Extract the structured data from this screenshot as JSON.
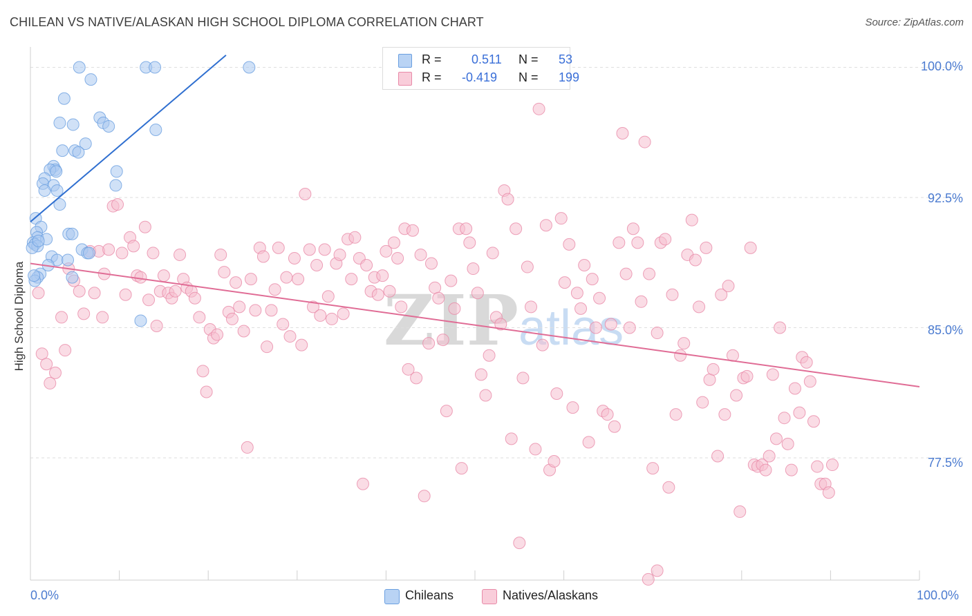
{
  "title": "CHILEAN VS NATIVE/ALASKAN HIGH SCHOOL DIPLOMA CORRELATION CHART",
  "source": "Source: ZipAtlas.com",
  "watermark": {
    "part1": "ZIP",
    "part2": "atlas"
  },
  "legend": {
    "rows": [
      {
        "r_label": "R =",
        "r_value": "0.511",
        "n_label": "N =",
        "n_value": "53",
        "color": "#a9c8f0"
      },
      {
        "r_label": "R =",
        "r_value": "-0.419",
        "n_label": "N =",
        "n_value": "199",
        "color": "#f6bfd0"
      }
    ]
  },
  "bottom_legend": [
    {
      "label": "Chileans",
      "color": "#a9c8f0"
    },
    {
      "label": "Natives/Alaskans",
      "color": "#f6bfd0"
    }
  ],
  "chart_data": {
    "type": "scatter",
    "title": "CHILEAN VS NATIVE/ALASKAN HIGH SCHOOL DIPLOMA CORRELATION CHART",
    "xlabel": "",
    "ylabel": "High School Diploma",
    "xlim": [
      0,
      100
    ],
    "ylim": [
      70.5,
      100.7
    ],
    "x_tick_labels": [
      "0.0%",
      "100.0%"
    ],
    "y_ticks": [
      77.5,
      85.0,
      92.5,
      100.0
    ],
    "y_tick_labels": [
      "77.5%",
      "85.0%",
      "92.5%",
      "100.0%"
    ],
    "grid": "horizontal dashed",
    "legend_position": "top-center",
    "series": [
      {
        "name": "Chileans",
        "color": "#6a9fe0",
        "fill": "#a9c8f0",
        "r": 0.511,
        "n": 53,
        "trend": {
          "x": [
            0.0,
            22.0
          ],
          "y": [
            91.1,
            100.7
          ]
        },
        "points": [
          [
            5.5,
            100.0
          ],
          [
            13.0,
            100.0
          ],
          [
            14.0,
            100.0
          ],
          [
            24.6,
            100.0
          ],
          [
            6.8,
            99.3
          ],
          [
            3.8,
            98.2
          ],
          [
            7.8,
            97.1
          ],
          [
            3.3,
            96.8
          ],
          [
            8.2,
            96.8
          ],
          [
            4.8,
            96.7
          ],
          [
            8.8,
            96.6
          ],
          [
            14.1,
            96.4
          ],
          [
            6.2,
            95.6
          ],
          [
            3.6,
            95.2
          ],
          [
            5.0,
            95.2
          ],
          [
            5.4,
            95.1
          ],
          [
            2.6,
            94.3
          ],
          [
            2.8,
            94.1
          ],
          [
            2.2,
            94.1
          ],
          [
            2.9,
            94.0
          ],
          [
            9.7,
            94.0
          ],
          [
            1.6,
            93.6
          ],
          [
            1.4,
            93.3
          ],
          [
            2.6,
            93.2
          ],
          [
            9.6,
            93.2
          ],
          [
            1.6,
            92.9
          ],
          [
            3.0,
            92.9
          ],
          [
            3.3,
            92.1
          ],
          [
            0.6,
            91.3
          ],
          [
            1.2,
            90.8
          ],
          [
            0.7,
            90.5
          ],
          [
            4.3,
            90.4
          ],
          [
            4.7,
            90.4
          ],
          [
            0.8,
            90.2
          ],
          [
            1.8,
            90.1
          ],
          [
            0.3,
            89.9
          ],
          [
            0.5,
            89.8
          ],
          [
            0.8,
            89.7
          ],
          [
            0.2,
            89.6
          ],
          [
            5.8,
            89.5
          ],
          [
            6.4,
            89.3
          ],
          [
            6.6,
            89.3
          ],
          [
            2.4,
            89.1
          ],
          [
            3.0,
            88.9
          ],
          [
            4.2,
            88.9
          ],
          [
            2.0,
            88.6
          ],
          [
            1.1,
            88.1
          ],
          [
            0.8,
            87.9
          ],
          [
            4.7,
            87.9
          ],
          [
            0.5,
            87.7
          ],
          [
            12.4,
            85.4
          ],
          [
            0.4,
            88.0
          ],
          [
            0.9,
            90.0
          ]
        ]
      },
      {
        "name": "Natives/Alaskans",
        "color": "#e88aa8",
        "fill": "#f6bfd0",
        "r": -0.419,
        "n": 199,
        "trend": {
          "x": [
            0.0,
            100.0
          ],
          "y": [
            88.7,
            81.6
          ]
        },
        "points": [
          [
            0.9,
            87.0
          ],
          [
            1.3,
            83.5
          ],
          [
            1.8,
            82.9
          ],
          [
            2.2,
            81.8
          ],
          [
            2.8,
            82.4
          ],
          [
            3.5,
            85.6
          ],
          [
            3.9,
            83.7
          ],
          [
            4.3,
            88.4
          ],
          [
            4.9,
            87.7
          ],
          [
            5.5,
            87.1
          ],
          [
            6.0,
            85.8
          ],
          [
            6.7,
            89.4
          ],
          [
            7.2,
            87.0
          ],
          [
            7.7,
            89.4
          ],
          [
            8.1,
            85.6
          ],
          [
            8.3,
            88.1
          ],
          [
            8.8,
            89.5
          ],
          [
            9.3,
            92.0
          ],
          [
            9.8,
            92.1
          ],
          [
            10.3,
            89.3
          ],
          [
            10.7,
            86.9
          ],
          [
            11.2,
            90.2
          ],
          [
            11.6,
            89.7
          ],
          [
            12.0,
            88.0
          ],
          [
            12.4,
            87.9
          ],
          [
            12.9,
            90.8
          ],
          [
            13.3,
            86.6
          ],
          [
            13.8,
            89.3
          ],
          [
            14.2,
            85.1
          ],
          [
            14.6,
            87.1
          ],
          [
            15.0,
            88.0
          ],
          [
            15.5,
            87.0
          ],
          [
            15.9,
            86.7
          ],
          [
            16.3,
            87.1
          ],
          [
            16.8,
            89.2
          ],
          [
            17.2,
            87.8
          ],
          [
            17.6,
            87.3
          ],
          [
            18.1,
            87.1
          ],
          [
            18.5,
            86.7
          ],
          [
            19.0,
            85.6
          ],
          [
            19.4,
            82.5
          ],
          [
            19.8,
            81.3
          ],
          [
            20.2,
            84.9
          ],
          [
            20.6,
            84.4
          ],
          [
            21.0,
            84.6
          ],
          [
            21.4,
            89.2
          ],
          [
            21.8,
            88.2
          ],
          [
            22.3,
            85.9
          ],
          [
            22.7,
            85.5
          ],
          [
            23.1,
            87.6
          ],
          [
            23.5,
            86.2
          ],
          [
            24.0,
            84.8
          ],
          [
            24.4,
            78.1
          ],
          [
            24.8,
            87.8
          ],
          [
            25.3,
            86.0
          ],
          [
            25.8,
            89.6
          ],
          [
            26.2,
            89.1
          ],
          [
            26.6,
            83.9
          ],
          [
            27.1,
            86.0
          ],
          [
            27.5,
            87.2
          ],
          [
            27.9,
            89.6
          ],
          [
            28.4,
            85.2
          ],
          [
            28.8,
            87.9
          ],
          [
            29.2,
            84.5
          ],
          [
            29.7,
            89.0
          ],
          [
            30.1,
            87.8
          ],
          [
            30.5,
            84.0
          ],
          [
            30.9,
            92.7
          ],
          [
            31.4,
            89.5
          ],
          [
            31.8,
            86.2
          ],
          [
            32.2,
            88.6
          ],
          [
            32.6,
            85.7
          ],
          [
            33.1,
            89.5
          ],
          [
            33.5,
            86.8
          ],
          [
            33.9,
            85.5
          ],
          [
            34.4,
            88.7
          ],
          [
            34.8,
            89.2
          ],
          [
            35.2,
            85.8
          ],
          [
            35.7,
            90.1
          ],
          [
            36.1,
            87.8
          ],
          [
            36.5,
            90.2
          ],
          [
            37.0,
            89.0
          ],
          [
            37.4,
            76.0
          ],
          [
            37.8,
            88.6
          ],
          [
            38.3,
            87.1
          ],
          [
            38.7,
            87.9
          ],
          [
            39.1,
            86.9
          ],
          [
            39.6,
            88.0
          ],
          [
            40.0,
            89.4
          ],
          [
            40.4,
            87.1
          ],
          [
            40.9,
            89.9
          ],
          [
            41.3,
            89.0
          ],
          [
            41.7,
            86.2
          ],
          [
            42.1,
            90.7
          ],
          [
            42.5,
            82.6
          ],
          [
            43.0,
            90.6
          ],
          [
            43.4,
            82.1
          ],
          [
            43.9,
            89.2
          ],
          [
            44.3,
            75.3
          ],
          [
            44.8,
            84.1
          ],
          [
            45.1,
            88.7
          ],
          [
            45.5,
            87.3
          ],
          [
            45.9,
            86.7
          ],
          [
            46.4,
            84.3
          ],
          [
            46.8,
            80.2
          ],
          [
            47.3,
            87.7
          ],
          [
            47.7,
            86.1
          ],
          [
            48.2,
            90.7
          ],
          [
            48.5,
            76.9
          ],
          [
            49.0,
            90.7
          ],
          [
            49.4,
            89.9
          ],
          [
            49.8,
            88.4
          ],
          [
            50.3,
            87.0
          ],
          [
            50.7,
            82.3
          ],
          [
            51.2,
            81.1
          ],
          [
            51.6,
            83.4
          ],
          [
            52.0,
            89.3
          ],
          [
            52.4,
            85.6
          ],
          [
            52.9,
            85.2
          ],
          [
            53.3,
            92.9
          ],
          [
            53.7,
            92.4
          ],
          [
            54.1,
            78.6
          ],
          [
            54.6,
            90.7
          ],
          [
            55.0,
            72.6
          ],
          [
            55.4,
            82.1
          ],
          [
            55.9,
            88.5
          ],
          [
            56.3,
            86.2
          ],
          [
            56.8,
            78.0
          ],
          [
            57.2,
            97.6
          ],
          [
            57.6,
            84.0
          ],
          [
            58.0,
            90.9
          ],
          [
            58.4,
            76.8
          ],
          [
            58.9,
            77.3
          ],
          [
            59.2,
            81.2
          ],
          [
            59.7,
            91.3
          ],
          [
            60.1,
            87.6
          ],
          [
            60.6,
            89.8
          ],
          [
            61.0,
            80.4
          ],
          [
            61.5,
            87.0
          ],
          [
            61.9,
            86.1
          ],
          [
            62.3,
            88.6
          ],
          [
            62.8,
            78.4
          ],
          [
            63.2,
            87.8
          ],
          [
            63.6,
            85.0
          ],
          [
            64.0,
            86.7
          ],
          [
            64.4,
            80.2
          ],
          [
            64.9,
            80.0
          ],
          [
            65.3,
            85.2
          ],
          [
            65.7,
            79.3
          ],
          [
            66.2,
            89.9
          ],
          [
            66.6,
            96.2
          ],
          [
            67.0,
            88.1
          ],
          [
            67.4,
            85.0
          ],
          [
            67.8,
            90.7
          ],
          [
            68.3,
            89.9
          ],
          [
            68.7,
            86.5
          ],
          [
            69.1,
            95.7
          ],
          [
            69.6,
            88.1
          ],
          [
            70.0,
            76.9
          ],
          [
            70.5,
            84.7
          ],
          [
            70.9,
            89.9
          ],
          [
            71.4,
            90.1
          ],
          [
            71.8,
            75.8
          ],
          [
            72.2,
            86.9
          ],
          [
            72.6,
            80.0
          ],
          [
            73.1,
            83.4
          ],
          [
            73.5,
            84.1
          ],
          [
            73.9,
            89.2
          ],
          [
            74.4,
            91.2
          ],
          [
            74.8,
            88.9
          ],
          [
            75.2,
            86.2
          ],
          [
            75.6,
            80.7
          ],
          [
            76.0,
            89.6
          ],
          [
            76.4,
            82.0
          ],
          [
            76.8,
            82.6
          ],
          [
            77.3,
            77.6
          ],
          [
            77.7,
            86.9
          ],
          [
            78.1,
            80.0
          ],
          [
            78.5,
            87.4
          ],
          [
            79.0,
            83.4
          ],
          [
            79.4,
            81.1
          ],
          [
            79.8,
            74.4
          ],
          [
            80.2,
            82.1
          ],
          [
            80.6,
            82.2
          ],
          [
            81.0,
            89.6
          ],
          [
            81.4,
            77.1
          ],
          [
            81.8,
            77.0
          ],
          [
            82.3,
            77.1
          ],
          [
            82.7,
            76.8
          ],
          [
            83.1,
            77.6
          ],
          [
            83.5,
            82.3
          ],
          [
            83.9,
            78.6
          ],
          [
            84.3,
            85.0
          ],
          [
            84.8,
            79.8
          ],
          [
            85.2,
            78.3
          ],
          [
            85.6,
            76.8
          ],
          [
            86.0,
            81.5
          ],
          [
            86.5,
            80.1
          ],
          [
            86.8,
            83.3
          ],
          [
            87.3,
            83.0
          ],
          [
            87.7,
            81.9
          ],
          [
            88.1,
            79.6
          ],
          [
            88.5,
            77.0
          ],
          [
            88.9,
            76.0
          ],
          [
            89.4,
            76.0
          ],
          [
            89.8,
            75.5
          ],
          [
            90.2,
            77.1
          ],
          [
            69.5,
            70.5
          ],
          [
            70.5,
            71.0
          ]
        ]
      }
    ]
  }
}
